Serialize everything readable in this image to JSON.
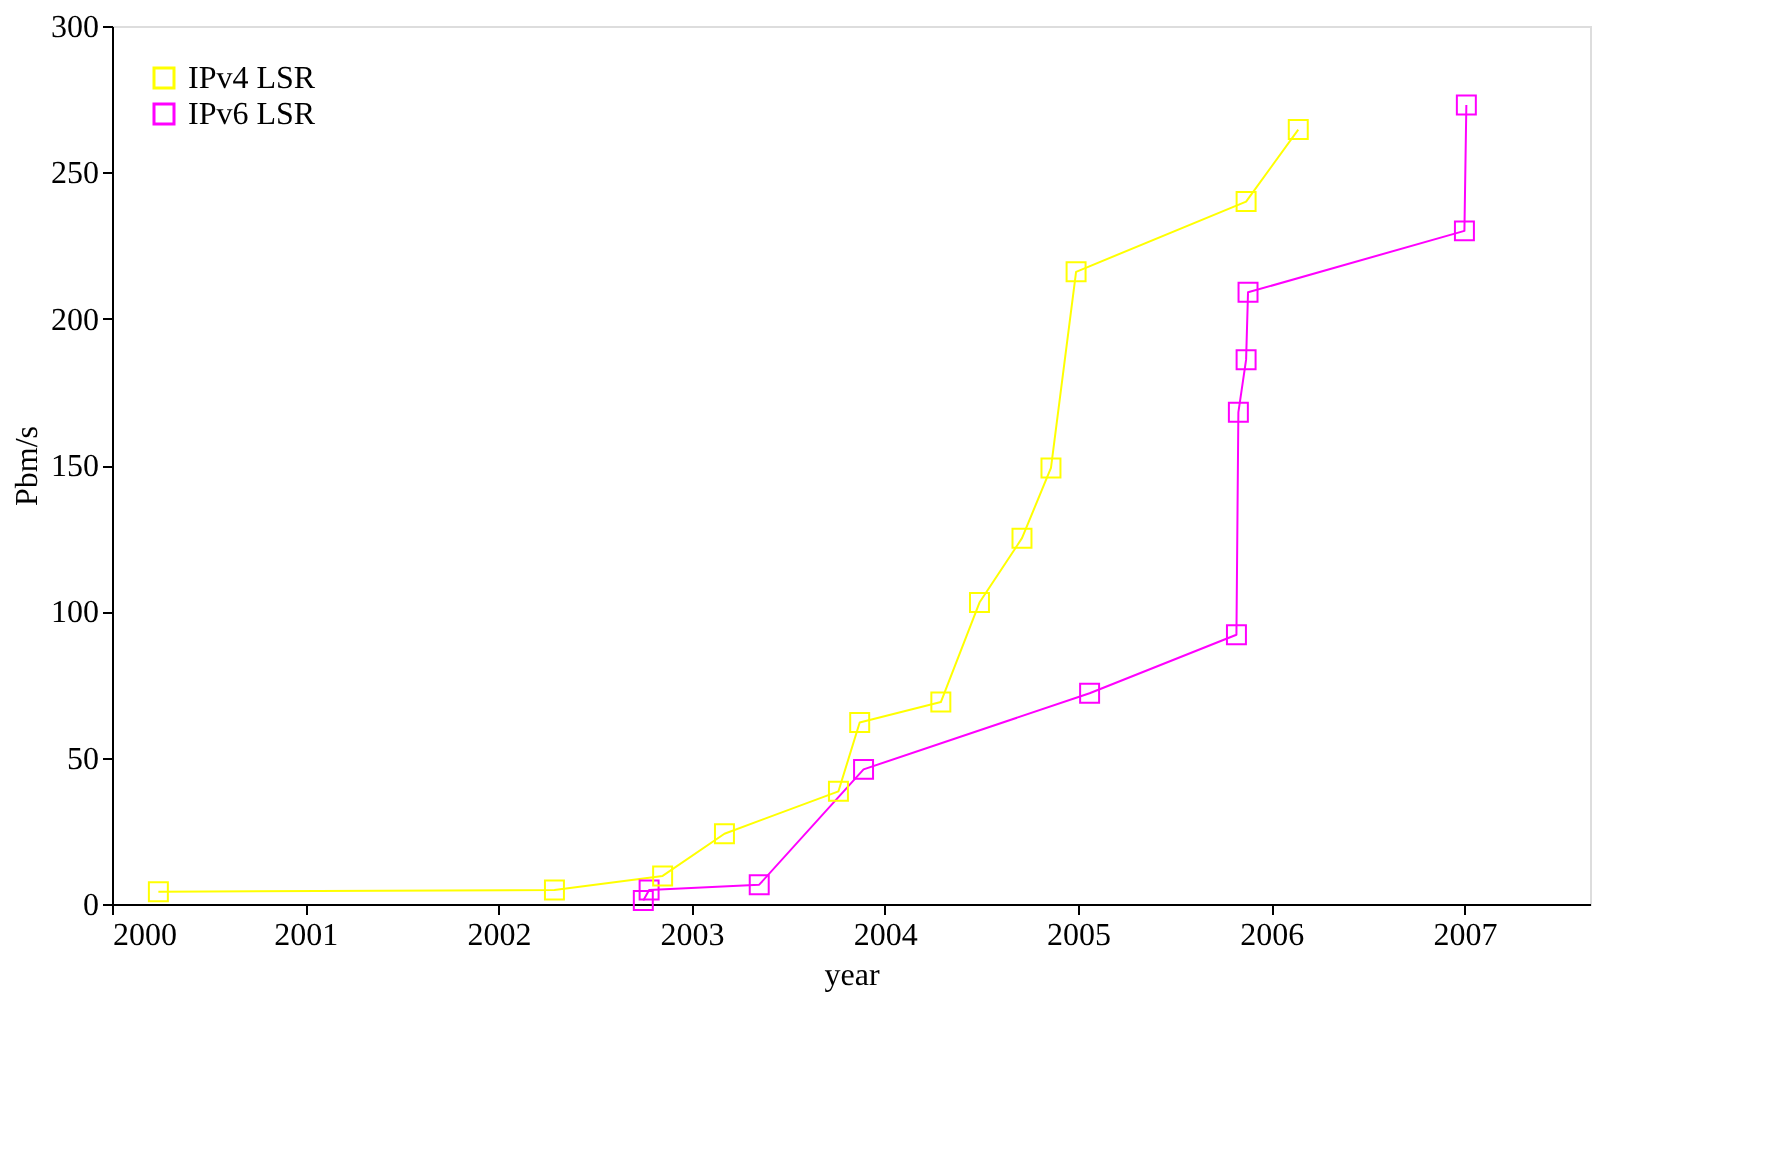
{
  "chart_data": {
    "type": "line",
    "xlabel": "year",
    "ylabel": "Pbm/s",
    "xlim": [
      2000,
      2007.65
    ],
    "xticks": [
      2000,
      2001,
      2002,
      2003,
      2004,
      2005,
      2006,
      2007
    ],
    "ylim": [
      0,
      300
    ],
    "yticks": [
      0,
      50,
      100,
      150,
      200,
      250,
      300
    ],
    "grid": false,
    "legend": "top left",
    "marker": "square",
    "line_style": "solid",
    "series": [
      {
        "name": "IPv4 LSR",
        "color": "#ffff00",
        "x": [
          2000.24,
          2002.29,
          2002.85,
          2003.17,
          2003.76,
          2003.87,
          2004.29,
          2004.49,
          2004.71,
          2004.86,
          2004.99,
          2005.87,
          2006.14
        ],
        "values": [
          4.2,
          4.8,
          9.6,
          24,
          38.5,
          62,
          69,
          103,
          125,
          149,
          216,
          240,
          264.6
        ]
      },
      {
        "name": "IPv6 LSR",
        "color": "#ff00ff",
        "x": [
          2002.75,
          2002.78,
          2003.35,
          2003.89,
          2005.06,
          2005.82,
          2005.83,
          2005.87,
          2005.88,
          2007.0,
          2007.01
        ],
        "values": [
          1.2,
          4.8,
          6.6,
          46,
          72,
          92,
          168,
          186,
          209,
          230,
          273
        ]
      }
    ]
  }
}
